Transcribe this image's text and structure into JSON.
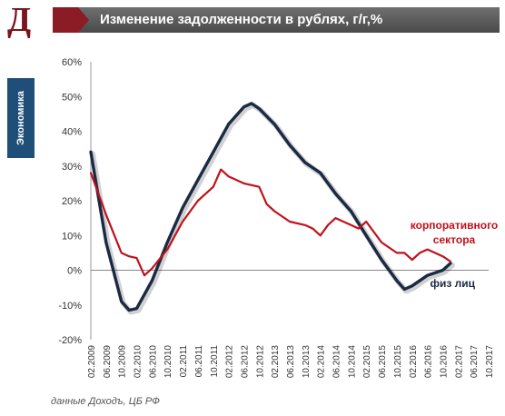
{
  "header": {
    "logo_letter": "Д",
    "title": "Изменение задолженности в рублях, г/г,%"
  },
  "side_tab": {
    "label": "Экономика"
  },
  "source": "данные Доходъ, ЦБ РФ",
  "colors": {
    "individuals": "#1b2a44",
    "corporate": "#c0111b",
    "title_bar": "#5a5a5a",
    "accent": "#8b1b24",
    "side_tab": "#1f4e79"
  },
  "chart_data": {
    "type": "line",
    "title": "",
    "xlabel": "",
    "ylabel": "",
    "ylim": [
      -20,
      60
    ],
    "yticks": [
      -20,
      -10,
      0,
      10,
      20,
      30,
      40,
      50,
      60
    ],
    "ytick_labels": [
      "-20%",
      "-10%",
      "0%",
      "10%",
      "20%",
      "30%",
      "40%",
      "50%",
      "60%"
    ],
    "xlim": [
      "02.2009",
      "10.2017"
    ],
    "xtick_labels": [
      "02.2009",
      "06.2009",
      "10.2009",
      "02.2010",
      "06.2010",
      "10.2010",
      "02.2011",
      "06.2011",
      "10.2011",
      "02.2012",
      "06.2012",
      "10.2012",
      "02.2013",
      "06.2013",
      "10.2013",
      "02.2014",
      "06.2014",
      "10.2014",
      "02.2015",
      "06.2015",
      "10.2015",
      "02.2016",
      "06.2016",
      "10.2016",
      "02.2017",
      "06.2017",
      "10.2017"
    ],
    "grid": false,
    "series": [
      {
        "name": "физ лиц",
        "x": [
          "02.2009",
          "06.2009",
          "10.2009",
          "12.2009",
          "02.2010",
          "06.2010",
          "10.2010",
          "02.2011",
          "06.2011",
          "10.2011",
          "02.2012",
          "06.2012",
          "08.2012",
          "10.2012",
          "02.2013",
          "06.2013",
          "10.2013",
          "02.2014",
          "06.2014",
          "10.2014",
          "02.2015",
          "06.2015",
          "10.2015",
          "12.2015",
          "02.2016",
          "06.2016",
          "10.2016",
          "12.2016"
        ],
        "values": [
          34,
          8,
          -9,
          -11.5,
          -11,
          -3,
          8,
          18,
          26,
          34,
          42,
          47,
          48,
          46.5,
          42,
          36,
          31,
          28,
          22,
          17,
          10,
          3,
          -3,
          -5.5,
          -4.5,
          -1.5,
          0,
          2
        ]
      },
      {
        "name": "корпоративного сектора",
        "x": [
          "02.2009",
          "06.2009",
          "10.2009",
          "12.2009",
          "02.2010",
          "04.2010",
          "06.2010",
          "10.2010",
          "02.2011",
          "06.2011",
          "10.2011",
          "12.2011",
          "02.2012",
          "06.2012",
          "10.2012",
          "12.2012",
          "02.2013",
          "06.2013",
          "10.2013",
          "12.2013",
          "02.2014",
          "04.2014",
          "06.2014",
          "10.2014",
          "12.2014",
          "02.2015",
          "06.2015",
          "10.2015",
          "12.2015",
          "02.2016",
          "04.2016",
          "06.2016",
          "10.2016",
          "12.2016"
        ],
        "values": [
          28,
          16,
          5,
          4,
          3.5,
          -1.5,
          0.5,
          6,
          14,
          20,
          24,
          29,
          27,
          25,
          24,
          19,
          17,
          14,
          13,
          12,
          10,
          13,
          15,
          13,
          12,
          14,
          8,
          5,
          5,
          3,
          5,
          6,
          4,
          2.5
        ]
      }
    ]
  }
}
